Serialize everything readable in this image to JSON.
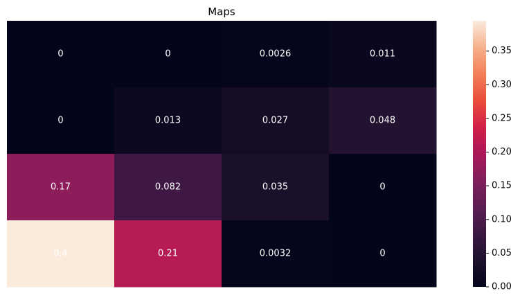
{
  "chart_data": {
    "type": "heatmap",
    "title": "Maps",
    "rows": 4,
    "cols": 4,
    "values": [
      [
        0,
        0,
        0.0026,
        0.011
      ],
      [
        0,
        0.013,
        0.027,
        0.048
      ],
      [
        0.17,
        0.082,
        0.035,
        0
      ],
      [
        0.4,
        0.21,
        0.0032,
        0
      ]
    ],
    "labels": [
      [
        "0",
        "0",
        "0.0026",
        "0.011"
      ],
      [
        "0",
        "0.013",
        "0.027",
        "0.048"
      ],
      [
        "0.17",
        "0.082",
        "0.035",
        "0"
      ],
      [
        "0.4",
        "0.21",
        "0.0032",
        "0"
      ]
    ],
    "colorbar": {
      "range": [
        0,
        0.395
      ],
      "ticks": [
        0.0,
        0.05,
        0.1,
        0.15,
        0.2,
        0.25,
        0.3,
        0.35
      ],
      "tick_labels": [
        "0.00",
        "0.05",
        "0.10",
        "0.15",
        "0.20",
        "0.25",
        "0.30",
        "0.35"
      ]
    },
    "colormap": "rocket",
    "grid": false,
    "legend": "colorbar-right"
  }
}
